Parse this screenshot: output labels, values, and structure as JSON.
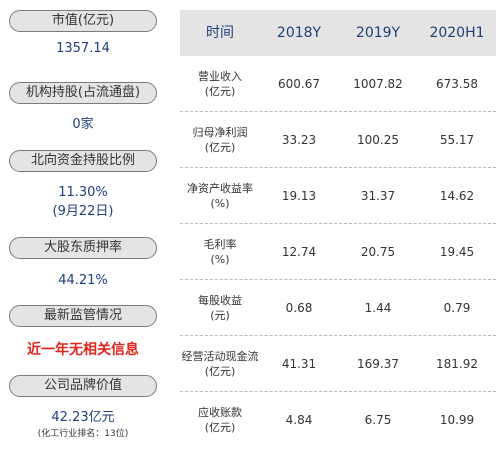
{
  "left_panel": {
    "market_cap": {
      "label": "市值(亿元)",
      "value": "1357.14"
    },
    "institutional": {
      "label": "机构持股(占流通盘)",
      "value": "0家"
    },
    "northbound": {
      "label": "北向资金持股比例",
      "value": "11.30%",
      "date": "(9月22日)"
    },
    "pledge": {
      "label": "大股东质押率",
      "value": "44.21%"
    },
    "regulation": {
      "label": "最新监管情况",
      "value": "近一年无相关信息"
    },
    "brand": {
      "label": "公司品牌价值",
      "value": "42.23亿元",
      "rank": "(化工行业排名：13位)"
    }
  },
  "table": {
    "headers": [
      "时间",
      "2018Y",
      "2019Y",
      "2020H1"
    ],
    "rows": [
      {
        "label_line1": "营业收入",
        "label_line2": "(亿元)",
        "values": [
          "600.67",
          "1007.82",
          "673.58"
        ]
      },
      {
        "label_line1": "归母净利润",
        "label_line2": "(亿元)",
        "values": [
          "33.23",
          "100.25",
          "55.17"
        ]
      },
      {
        "label_line1": "净资产收益率",
        "label_line2": "(%)",
        "values": [
          "19.13",
          "31.37",
          "14.62"
        ]
      },
      {
        "label_line1": "毛利率",
        "label_line2": "(%)",
        "values": [
          "12.74",
          "20.75",
          "19.45"
        ]
      },
      {
        "label_line1": "每股收益",
        "label_line2": "(元)",
        "values": [
          "0.68",
          "1.44",
          "0.79"
        ]
      },
      {
        "label_line1": "经营活动现金流",
        "label_line2": "(亿元)",
        "values": [
          "41.31",
          "169.37",
          "181.92"
        ]
      },
      {
        "label_line1": "应收账款",
        "label_line2": "(亿元)",
        "values": [
          "4.84",
          "6.75",
          "10.99"
        ]
      }
    ]
  }
}
